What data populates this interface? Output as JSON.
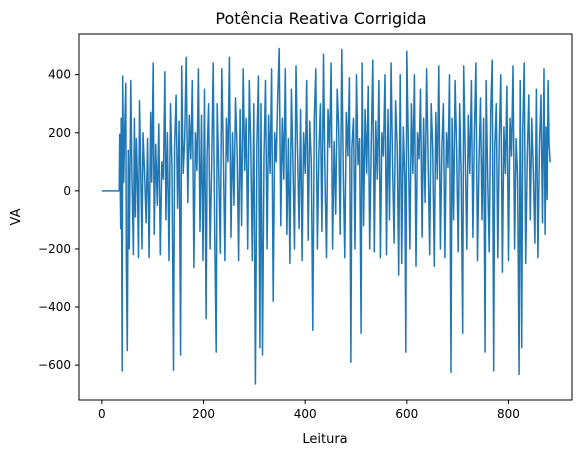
{
  "chart_data": {
    "type": "line",
    "title": "Potência Reativa Corrigida",
    "xlabel": "Leitura",
    "ylabel": "VA",
    "xlim": [
      -45,
      925
    ],
    "ylim": [
      -720,
      540
    ],
    "x_ticks": [
      0,
      200,
      400,
      600,
      800
    ],
    "y_ticks": [
      -600,
      -400,
      -200,
      0,
      200,
      400
    ],
    "x_tick_labels": [
      "0",
      "200",
      "400",
      "600",
      "800"
    ],
    "y_tick_labels": [
      "−600",
      "−400",
      "−200",
      "0",
      "200",
      "400"
    ],
    "grid": false,
    "legend": "none",
    "colors": {
      "line": "#1f77b4"
    },
    "series": [
      {
        "n_points": 884,
        "flat_until": 34,
        "flat_value": 0,
        "points": [
          [
            0,
            0
          ],
          [
            34,
            0
          ],
          [
            35,
            195
          ],
          [
            37,
            -130
          ],
          [
            38,
            250
          ],
          [
            40,
            -620
          ],
          [
            41,
            395
          ],
          [
            43,
            30
          ],
          [
            45,
            210
          ],
          [
            47,
            370
          ],
          [
            48,
            -240
          ],
          [
            50,
            -550
          ],
          [
            52,
            140
          ],
          [
            54,
            -200
          ],
          [
            57,
            380
          ],
          [
            59,
            60
          ],
          [
            62,
            -220
          ],
          [
            64,
            250
          ],
          [
            66,
            -90
          ],
          [
            68,
            180
          ],
          [
            70,
            40
          ],
          [
            72,
            -230
          ],
          [
            74,
            310
          ],
          [
            76,
            120
          ],
          [
            79,
            -200
          ],
          [
            81,
            200
          ],
          [
            84,
            60
          ],
          [
            87,
            -110
          ],
          [
            90,
            180
          ],
          [
            93,
            -230
          ],
          [
            96,
            270
          ],
          [
            98,
            30
          ],
          [
            101,
            440
          ],
          [
            103,
            -150
          ],
          [
            106,
            160
          ],
          [
            109,
            -50
          ],
          [
            112,
            230
          ],
          [
            115,
            -220
          ],
          [
            118,
            100
          ],
          [
            121,
            40
          ],
          [
            124,
            410
          ],
          [
            126,
            -100
          ],
          [
            129,
            200
          ],
          [
            132,
            -240
          ],
          [
            135,
            300
          ],
          [
            138,
            80
          ],
          [
            141,
            -618
          ],
          [
            143,
            150
          ],
          [
            146,
            330
          ],
          [
            149,
            -60
          ],
          [
            152,
            240
          ],
          [
            155,
            -565
          ],
          [
            157,
            430
          ],
          [
            160,
            60
          ],
          [
            163,
            180
          ],
          [
            166,
            460
          ],
          [
            169,
            -40
          ],
          [
            172,
            260
          ],
          [
            175,
            110
          ],
          [
            178,
            380
          ],
          [
            181,
            -265
          ],
          [
            184,
            200
          ],
          [
            187,
            70
          ],
          [
            190,
            420
          ],
          [
            193,
            -140
          ],
          [
            196,
            260
          ],
          [
            199,
            -240
          ],
          [
            202,
            350
          ],
          [
            205,
            -440
          ],
          [
            207,
            120
          ],
          [
            210,
            300
          ],
          [
            213,
            -200
          ],
          [
            216,
            90
          ],
          [
            219,
            440
          ],
          [
            222,
            -140
          ],
          [
            225,
            -555
          ],
          [
            227,
            300
          ],
          [
            230,
            60
          ],
          [
            233,
            -215
          ],
          [
            236,
            420
          ],
          [
            239,
            140
          ],
          [
            242,
            -240
          ],
          [
            245,
            250
          ],
          [
            248,
            100
          ],
          [
            251,
            460
          ],
          [
            254,
            -160
          ],
          [
            257,
            200
          ],
          [
            260,
            -50
          ],
          [
            263,
            320
          ],
          [
            266,
            140
          ],
          [
            269,
            -240
          ],
          [
            272,
            280
          ],
          [
            275,
            -120
          ],
          [
            278,
            420
          ],
          [
            281,
            70
          ],
          [
            284,
            250
          ],
          [
            287,
            -200
          ],
          [
            290,
            380
          ],
          [
            293,
            150
          ],
          [
            296,
            -240
          ],
          [
            299,
            300
          ],
          [
            302,
            -665
          ],
          [
            305,
            160
          ],
          [
            308,
            395
          ],
          [
            311,
            -540
          ],
          [
            313,
            300
          ],
          [
            316,
            -565
          ],
          [
            319,
            120
          ],
          [
            322,
            380
          ],
          [
            325,
            -200
          ],
          [
            328,
            260
          ],
          [
            331,
            60
          ],
          [
            334,
            420
          ],
          [
            337,
            -380
          ],
          [
            340,
            200
          ],
          [
            343,
            100
          ],
          [
            346,
            320
          ],
          [
            349,
            490
          ],
          [
            352,
            -120
          ],
          [
            355,
            250
          ],
          [
            358,
            40
          ],
          [
            361,
            420
          ],
          [
            364,
            -150
          ],
          [
            367,
            180
          ],
          [
            370,
            -250
          ],
          [
            373,
            350
          ],
          [
            376,
            90
          ],
          [
            379,
            -200
          ],
          [
            382,
            430
          ],
          [
            385,
            140
          ],
          [
            388,
            -130
          ],
          [
            391,
            280
          ],
          [
            394,
            -240
          ],
          [
            397,
            200
          ],
          [
            400,
            60
          ],
          [
            403,
            380
          ],
          [
            406,
            -170
          ],
          [
            409,
            240
          ],
          [
            412,
            100
          ],
          [
            415,
            -480
          ],
          [
            418,
            250
          ],
          [
            421,
            420
          ],
          [
            424,
            -200
          ],
          [
            427,
            130
          ],
          [
            430,
            300
          ],
          [
            433,
            -140
          ],
          [
            436,
            470
          ],
          [
            439,
            50
          ],
          [
            442,
            -230
          ],
          [
            445,
            280
          ],
          [
            448,
            150
          ],
          [
            451,
            440
          ],
          [
            454,
            -200
          ],
          [
            457,
            170
          ],
          [
            460,
            -80
          ],
          [
            463,
            350
          ],
          [
            466,
            220
          ],
          [
            469,
            -150
          ],
          [
            472,
            487
          ],
          [
            475,
            60
          ],
          [
            478,
            -230
          ],
          [
            481,
            270
          ],
          [
            484,
            120
          ],
          [
            487,
            390
          ],
          [
            490,
            -590
          ],
          [
            492,
            150
          ],
          [
            495,
            250
          ],
          [
            498,
            -200
          ],
          [
            501,
            400
          ],
          [
            504,
            90
          ],
          [
            507,
            180
          ],
          [
            510,
            -490
          ],
          [
            512,
            440
          ],
          [
            515,
            -120
          ],
          [
            518,
            280
          ],
          [
            521,
            60
          ],
          [
            524,
            360
          ],
          [
            527,
            -200
          ],
          [
            530,
            150
          ],
          [
            533,
            450
          ],
          [
            536,
            -210
          ],
          [
            539,
            240
          ],
          [
            542,
            40
          ],
          [
            545,
            380
          ],
          [
            548,
            -230
          ],
          [
            551,
            200
          ],
          [
            554,
            120
          ],
          [
            557,
            400
          ],
          [
            560,
            -220
          ],
          [
            563,
            280
          ],
          [
            566,
            -100
          ],
          [
            569,
            440
          ],
          [
            572,
            80
          ],
          [
            575,
            -180
          ],
          [
            578,
            310
          ],
          [
            581,
            150
          ],
          [
            584,
            -290
          ],
          [
            587,
            400
          ],
          [
            590,
            -250
          ],
          [
            593,
            220
          ],
          [
            596,
            40
          ],
          [
            598,
            -555
          ],
          [
            600,
            480
          ],
          [
            603,
            170
          ],
          [
            606,
            -200
          ],
          [
            609,
            300
          ],
          [
            612,
            60
          ],
          [
            615,
            400
          ],
          [
            618,
            -260
          ],
          [
            621,
            200
          ],
          [
            624,
            110
          ],
          [
            627,
            350
          ],
          [
            630,
            -160
          ],
          [
            633,
            250
          ],
          [
            636,
            -40
          ],
          [
            639,
            420
          ],
          [
            642,
            90
          ],
          [
            645,
            -220
          ],
          [
            648,
            300
          ],
          [
            651,
            150
          ],
          [
            654,
            -260
          ],
          [
            657,
            270
          ],
          [
            660,
            40
          ],
          [
            663,
            430
          ],
          [
            666,
            -200
          ],
          [
            669,
            150
          ],
          [
            672,
            300
          ],
          [
            675,
            -230
          ],
          [
            678,
            200
          ],
          [
            681,
            80
          ],
          [
            684,
            400
          ],
          [
            687,
            -625
          ],
          [
            689,
            250
          ],
          [
            692,
            -100
          ],
          [
            695,
            380
          ],
          [
            698,
            150
          ],
          [
            701,
            -210
          ],
          [
            704,
            300
          ],
          [
            707,
            50
          ],
          [
            710,
            -490
          ],
          [
            712,
            430
          ],
          [
            715,
            120
          ],
          [
            718,
            -200
          ],
          [
            721,
            260
          ],
          [
            724,
            60
          ],
          [
            727,
            380
          ],
          [
            730,
            -160
          ],
          [
            733,
            200
          ],
          [
            736,
            440
          ],
          [
            739,
            -240
          ],
          [
            742,
            100
          ],
          [
            745,
            320
          ],
          [
            748,
            -100
          ],
          [
            751,
            250
          ],
          [
            754,
            -555
          ],
          [
            756,
            380
          ],
          [
            759,
            60
          ],
          [
            762,
            -210
          ],
          [
            765,
            270
          ],
          [
            768,
            450
          ],
          [
            771,
            -620
          ],
          [
            773,
            140
          ],
          [
            776,
            300
          ],
          [
            779,
            -230
          ],
          [
            782,
            180
          ],
          [
            785,
            400
          ],
          [
            788,
            -280
          ],
          [
            791,
            220
          ],
          [
            794,
            60
          ],
          [
            797,
            360
          ],
          [
            800,
            -240
          ],
          [
            803,
            250
          ],
          [
            806,
            120
          ],
          [
            809,
            430
          ],
          [
            812,
            -200
          ],
          [
            815,
            180
          ],
          [
            818,
            50
          ],
          [
            821,
            -632
          ],
          [
            823,
            380
          ],
          [
            826,
            -540
          ],
          [
            828,
            200
          ],
          [
            831,
            440
          ],
          [
            834,
            -250
          ],
          [
            837,
            120
          ],
          [
            840,
            330
          ],
          [
            843,
            -100
          ],
          [
            846,
            250
          ],
          [
            849,
            60
          ],
          [
            852,
            -180
          ],
          [
            855,
            350
          ],
          [
            858,
            -230
          ],
          [
            861,
            160
          ],
          [
            864,
            330
          ],
          [
            867,
            -110
          ],
          [
            870,
            420
          ],
          [
            872,
            -150
          ],
          [
            874,
            220
          ],
          [
            876,
            -30
          ],
          [
            878,
            380
          ],
          [
            880,
            160
          ],
          [
            882,
            100
          ],
          [
            883,
            100
          ]
        ]
      }
    ]
  }
}
